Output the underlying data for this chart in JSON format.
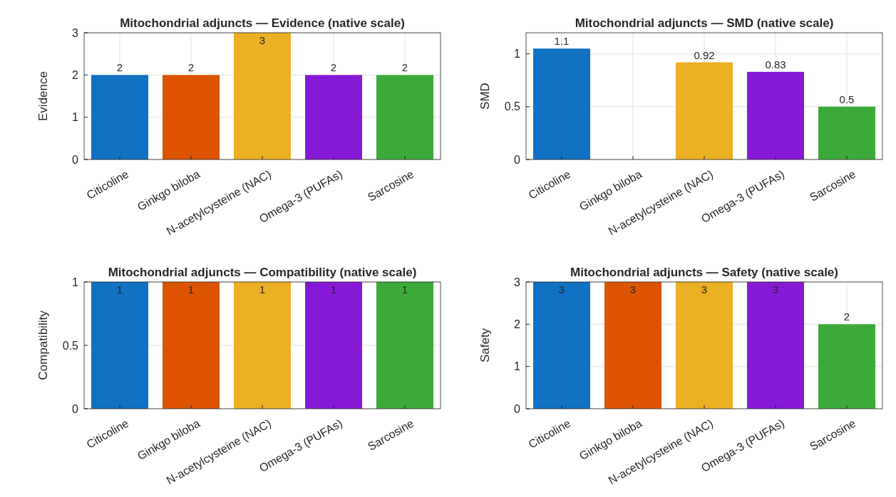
{
  "chart_data": [
    {
      "type": "bar",
      "title": "Mitochondrial adjuncts — Evidence (native scale)",
      "ylabel": "Evidence",
      "categories": [
        "Citicoline",
        "Ginkgo biloba",
        "N-acetylcysteine (NAC)",
        "Omega-3 (PUFAs)",
        "Sarcosine"
      ],
      "values": [
        2,
        2,
        3,
        2,
        2
      ],
      "colors": [
        "#1171c2",
        "#dc5302",
        "#ecb024",
        "#8619d6",
        "#3caa3a"
      ],
      "ylim": [
        0,
        3
      ],
      "yticks": [
        0,
        1,
        2,
        3
      ],
      "grid": true,
      "data_labels": true
    },
    {
      "type": "bar",
      "title": "Mitochondrial adjuncts — SMD (native scale)",
      "ylabel": "SMD",
      "categories": [
        "Citicoline",
        "Ginkgo biloba",
        "N-acetylcysteine (NAC)",
        "Omega-3 (PUFAs)",
        "Sarcosine"
      ],
      "values": [
        1.05,
        null,
        0.92,
        0.83,
        0.5
      ],
      "value_labels": [
        "1.1",
        null,
        "0.92",
        "0.83",
        "0.5"
      ],
      "colors": [
        "#1171c2",
        null,
        "#ecb024",
        "#8619d6",
        "#3caa3a"
      ],
      "ylim": [
        0,
        1.2
      ],
      "yticks": [
        0,
        0.5,
        1
      ],
      "grid": true
    },
    {
      "type": "bar",
      "title": "Mitochondrial adjuncts — Compatibility (native scale)",
      "ylabel": "Compatibility",
      "categories": [
        "Citicoline",
        "Ginkgo biloba",
        "N-acetylcysteine (NAC)",
        "Omega-3 (PUFAs)",
        "Sarcosine"
      ],
      "values": [
        1,
        1,
        1,
        1,
        1
      ],
      "colors": [
        "#1171c2",
        "#dc5302",
        "#ecb024",
        "#8619d6",
        "#3caa3a"
      ],
      "ylim": [
        0,
        1
      ],
      "yticks": [
        0,
        0.5,
        1
      ],
      "grid": true,
      "data_labels": true
    },
    {
      "type": "bar",
      "title": "Mitochondrial adjuncts — Safety (native scale)",
      "ylabel": "Safety",
      "categories": [
        "Citicoline",
        "Ginkgo biloba",
        "N-acetylcysteine (NAC)",
        "Omega-3 (PUFAs)",
        "Sarcosine"
      ],
      "values": [
        3,
        3,
        3,
        3,
        2
      ],
      "colors": [
        "#1171c2",
        "#dc5302",
        "#ecb024",
        "#8619d6",
        "#3caa3a"
      ],
      "ylim": [
        0,
        3
      ],
      "yticks": [
        0,
        1,
        2,
        3
      ],
      "grid": true,
      "data_labels": true
    }
  ]
}
